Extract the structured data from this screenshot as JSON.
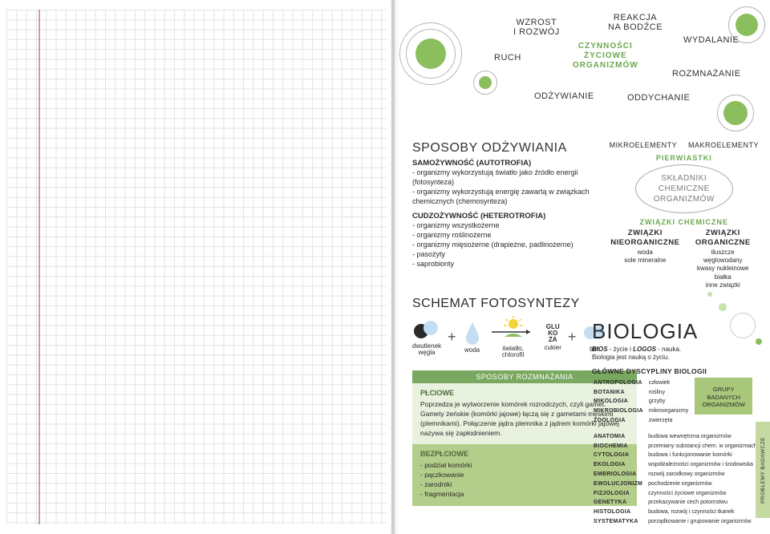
{
  "wordcloud": {
    "center_top": "CZYNNOŚCI",
    "center_mid": "ŻYCIOWE",
    "center_bot": "ORGANIZMÓW",
    "items": {
      "wzrost_l1": "WZROST",
      "wzrost_l2": "I ROZWÓJ",
      "reakcja_l1": "REAKCJA",
      "reakcja_l2": "NA BODŹCE",
      "wydalanie": "WYDALANIE",
      "ruch": "RUCH",
      "rozmnazanie": "ROZMNAŻANIE",
      "odzywianie": "ODŻYWIANIE",
      "oddychanie": "ODDYCHANIE"
    }
  },
  "feeding": {
    "title": "SPOSOBY ODŻYWIANIA",
    "auto_h": "SAMOŻYWNOŚĆ (AUTOTROFIA)",
    "auto_1": "- organizmy wykorzystują światło jako źródło energii (fotosynteza)",
    "auto_2": "- organizmy wykorzystują energię zawartą w związkach chemicznych (chemosynteza)",
    "het_h": "CUDZOŻYWNOŚĆ (HETEROTROFIA)",
    "het_1": "- organizmy wszystkożerne",
    "het_2": "- organizmy roślinożerne",
    "het_3": "- organizmy mięsożerne (drapieżne, padlinożerne)",
    "het_4": "- pasożyty",
    "het_5": "- saprobionty"
  },
  "chem": {
    "micro": "MIKROELEMENTY",
    "macro": "MAKROELEMENTY",
    "pierw": "PIERWIASTKI",
    "oval_1": "SKŁADNIKI",
    "oval_2": "CHEMICZNE",
    "oval_3": "ORGANIZMÓW",
    "zc": "ZWIĄZKI CHEMICZNE",
    "nieorg_h": "ZWIĄZKI NIEORGANICZNE",
    "nieorg_1": "woda",
    "nieorg_2": "sole mineralne",
    "org_h": "ZWIĄZKI ORGANICZNE",
    "org_1": "tłuszcze",
    "org_2": "węglowodany",
    "org_3": "kwasy nukleinowe",
    "org_4": "białka",
    "org_5": "inne związki"
  },
  "photo": {
    "title": "SCHEMAT FOTOSYNTEZY",
    "co2_l1": "dwutlenek",
    "co2_l2": "węgla",
    "water": "woda",
    "light_l1": "światło,",
    "light_l2": "chlorofil",
    "sugar": "cukier",
    "glu_1": "GLU",
    "glu_2": "KO",
    "glu_3": "ZA",
    "oxy": "tlen"
  },
  "repro": {
    "title": "SPOSOBY ROZMNAŻANIA",
    "plciowe_h": "PŁCIOWE",
    "plciowe_t": "Poprzedza je wytworzenie komórek rozrodczych, czyli gamet. Gamety żeńskie (komórki jajowe) łączą się z gametami męskimi (plemnikami). Połączenie jądra plemnika z jądrem komórki jajowej nazywa się zapłodnieniem.",
    "bez_h": "BEZPŁCIOWE",
    "bez_1": "- podział komórki",
    "bez_2": "- pączkowanie",
    "bez_3": "- zarodniki",
    "bez_4": "- fragmentacja"
  },
  "bio": {
    "title": "BIOLOGIA",
    "def": "BIOS - życie i LOGOS - nauka. Biologia jest nauką o życiu.",
    "disc_h": "GŁÓWNE DYSCYPLINY BIOLOGII",
    "group_box_l1": "GRUPY",
    "group_box_l2": "BADANYCH",
    "group_box_l3": "ORGANIZMÓW",
    "side": "PROBLEMY BADAWCZE",
    "d1": [
      [
        "ANTROPOLOGIA",
        "człowiek"
      ],
      [
        "BOTANIKA",
        "rośliny"
      ],
      [
        "MIKOLOGIA",
        "grzyby"
      ],
      [
        "MIKROBIOLOGIA",
        "mikroorganizmy"
      ],
      [
        "ZOOLOGIA",
        "zwierzęta"
      ]
    ],
    "d2": [
      [
        "ANATOMIA",
        "budowa wewnętrzna organizmów"
      ],
      [
        "BIOCHEMIA",
        "przemiany substancji chem. w organizmach"
      ],
      [
        "CYTOLOGIA",
        "budowa i funkcjonowanie komórki"
      ],
      [
        "EKOLOGIA",
        "współzależności organizmów i środowiska"
      ],
      [
        "EMBRIOLOGIA",
        "rozwój zarodkowy organizmów"
      ],
      [
        "EWOLUCJONIZM",
        "pochodzenie organizmów"
      ],
      [
        "FIZJOLOGIA",
        "czynności życiowe organizmów"
      ],
      [
        "GENETYKA",
        "przekazywanie cech potomstwu"
      ],
      [
        "HISTOLOGIA",
        "budowa, rozwój i czynności tkanek"
      ],
      [
        "SYSTEMATYKA",
        "porządkowanie i grupowanie organizmów"
      ]
    ]
  },
  "colors": {
    "green": "#8bbf5e",
    "green_dark": "#6ba84f",
    "light_blue": "#c3def2"
  }
}
